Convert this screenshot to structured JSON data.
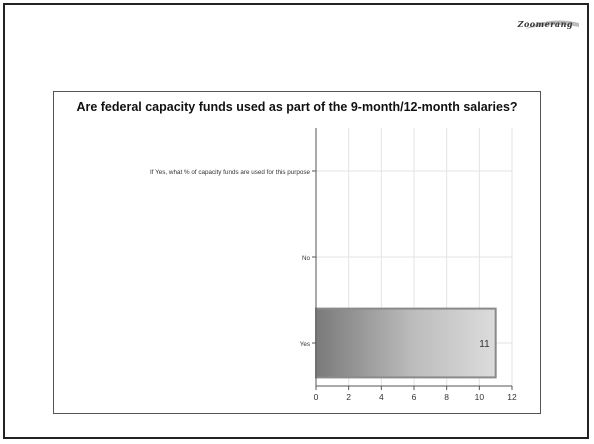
{
  "logo": {
    "text": "Zoomerang"
  },
  "chart_data": {
    "type": "bar",
    "orientation": "horizontal",
    "title": "Are federal capacity funds used as part of the 9-month/12-month salaries?",
    "categories": [
      "If Yes, what % of capacity funds are used for this purpose",
      "No",
      "Yes"
    ],
    "values": [
      0,
      0,
      11
    ],
    "data_labels": [
      "",
      "",
      "11"
    ],
    "xlim": [
      0,
      12
    ],
    "xticks": [
      "0",
      "2",
      "4",
      "6",
      "8",
      "10",
      "12"
    ],
    "grid": true,
    "legend": "none"
  }
}
